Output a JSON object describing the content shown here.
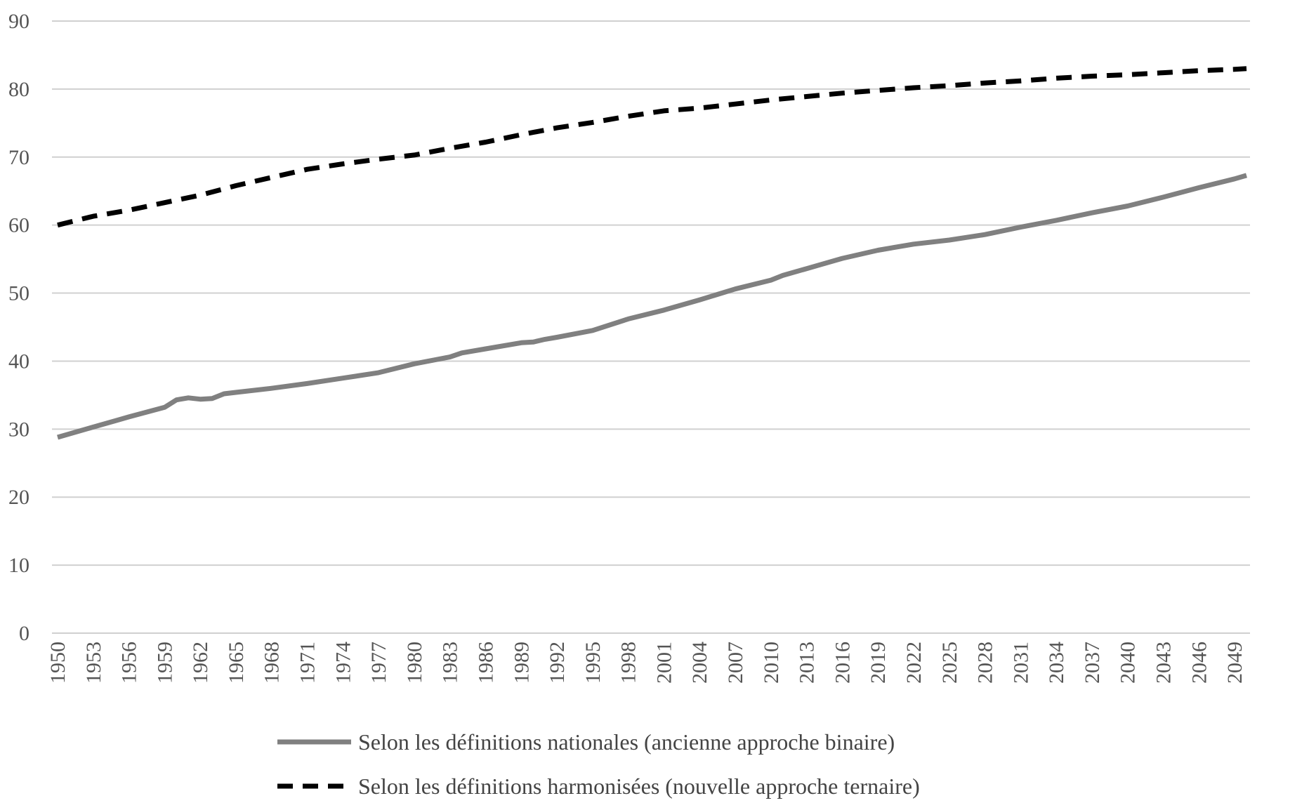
{
  "chart_data": {
    "type": "line",
    "title": "",
    "xlabel": "",
    "ylabel": "",
    "ylim": [
      0,
      90
    ],
    "yticks": [
      0,
      10,
      20,
      30,
      40,
      50,
      60,
      70,
      80,
      90
    ],
    "xlim": [
      1950,
      2050
    ],
    "xtick_labels": [
      "1950",
      "1953",
      "1956",
      "1959",
      "1962",
      "1965",
      "1968",
      "1971",
      "1974",
      "1977",
      "1980",
      "1983",
      "1986",
      "1989",
      "1992",
      "1995",
      "1998",
      "2001",
      "2004",
      "2007",
      "2010",
      "2013",
      "2016",
      "2019",
      "2022",
      "2025",
      "2028",
      "2031",
      "2034",
      "2037",
      "2040",
      "2043",
      "2046",
      "2049"
    ],
    "grid": "horizontal",
    "legend_position": "bottom",
    "series": [
      {
        "name": "Selon les définitions nationales (ancienne approche binaire)",
        "color": "#808080",
        "style": "solid",
        "points": [
          [
            1950,
            28.8
          ],
          [
            1953,
            30.3
          ],
          [
            1955,
            31.3
          ],
          [
            1956,
            31.8
          ],
          [
            1959,
            33.2
          ],
          [
            1960,
            34.3
          ],
          [
            1961,
            34.6
          ],
          [
            1962,
            34.4
          ],
          [
            1963,
            34.5
          ],
          [
            1964,
            35.2
          ],
          [
            1965,
            35.4
          ],
          [
            1968,
            36.0
          ],
          [
            1971,
            36.7
          ],
          [
            1974,
            37.5
          ],
          [
            1977,
            38.3
          ],
          [
            1980,
            39.6
          ],
          [
            1983,
            40.6
          ],
          [
            1984,
            41.2
          ],
          [
            1986,
            41.8
          ],
          [
            1989,
            42.7
          ],
          [
            1990,
            42.8
          ],
          [
            1991,
            43.2
          ],
          [
            1992,
            43.5
          ],
          [
            1995,
            44.5
          ],
          [
            1998,
            46.2
          ],
          [
            2001,
            47.5
          ],
          [
            2004,
            49.0
          ],
          [
            2007,
            50.6
          ],
          [
            2010,
            51.9
          ],
          [
            2011,
            52.6
          ],
          [
            2013,
            53.6
          ],
          [
            2016,
            55.1
          ],
          [
            2019,
            56.3
          ],
          [
            2022,
            57.2
          ],
          [
            2025,
            57.8
          ],
          [
            2028,
            58.6
          ],
          [
            2031,
            59.7
          ],
          [
            2034,
            60.7
          ],
          [
            2037,
            61.8
          ],
          [
            2040,
            62.8
          ],
          [
            2043,
            64.1
          ],
          [
            2046,
            65.5
          ],
          [
            2049,
            66.8
          ],
          [
            2050,
            67.3
          ]
        ]
      },
      {
        "name": "Selon les définitions harmonisées (nouvelle approche ternaire)",
        "color": "#000000",
        "style": "dashed",
        "points": [
          [
            1950,
            60.0
          ],
          [
            1953,
            61.3
          ],
          [
            1956,
            62.2
          ],
          [
            1959,
            63.3
          ],
          [
            1962,
            64.4
          ],
          [
            1965,
            65.8
          ],
          [
            1968,
            67.0
          ],
          [
            1971,
            68.2
          ],
          [
            1974,
            69.0
          ],
          [
            1977,
            69.7
          ],
          [
            1980,
            70.3
          ],
          [
            1983,
            71.3
          ],
          [
            1986,
            72.2
          ],
          [
            1989,
            73.3
          ],
          [
            1992,
            74.3
          ],
          [
            1995,
            75.1
          ],
          [
            1998,
            76.0
          ],
          [
            2001,
            76.8
          ],
          [
            2004,
            77.2
          ],
          [
            2007,
            77.8
          ],
          [
            2010,
            78.4
          ],
          [
            2013,
            78.9
          ],
          [
            2016,
            79.4
          ],
          [
            2019,
            79.8
          ],
          [
            2022,
            80.2
          ],
          [
            2025,
            80.5
          ],
          [
            2028,
            80.9
          ],
          [
            2031,
            81.2
          ],
          [
            2034,
            81.6
          ],
          [
            2037,
            81.9
          ],
          [
            2040,
            82.1
          ],
          [
            2043,
            82.4
          ],
          [
            2046,
            82.7
          ],
          [
            2049,
            82.9
          ],
          [
            2050,
            83.0
          ]
        ]
      }
    ]
  }
}
